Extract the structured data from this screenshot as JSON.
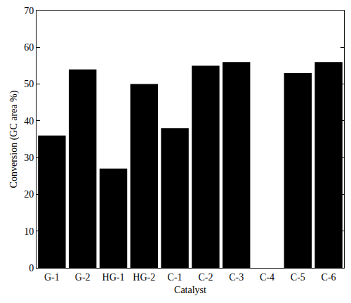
{
  "chart_data": {
    "type": "bar",
    "x_label": "Catalyst",
    "y_label": "Conversion (GC area %)",
    "categories": [
      "G-1",
      "G-2",
      "HG-1",
      "HG-2",
      "C-1",
      "C-2",
      "C-3",
      "C-4",
      "C-5",
      "C-6"
    ],
    "values": [
      36,
      54,
      27,
      50,
      38,
      55,
      56,
      0,
      53,
      56
    ],
    "color": "#000000",
    "ylim": [
      0,
      70
    ],
    "yticks": [
      0,
      10,
      20,
      30,
      40,
      50,
      60,
      70
    ],
    "grid": false
  }
}
